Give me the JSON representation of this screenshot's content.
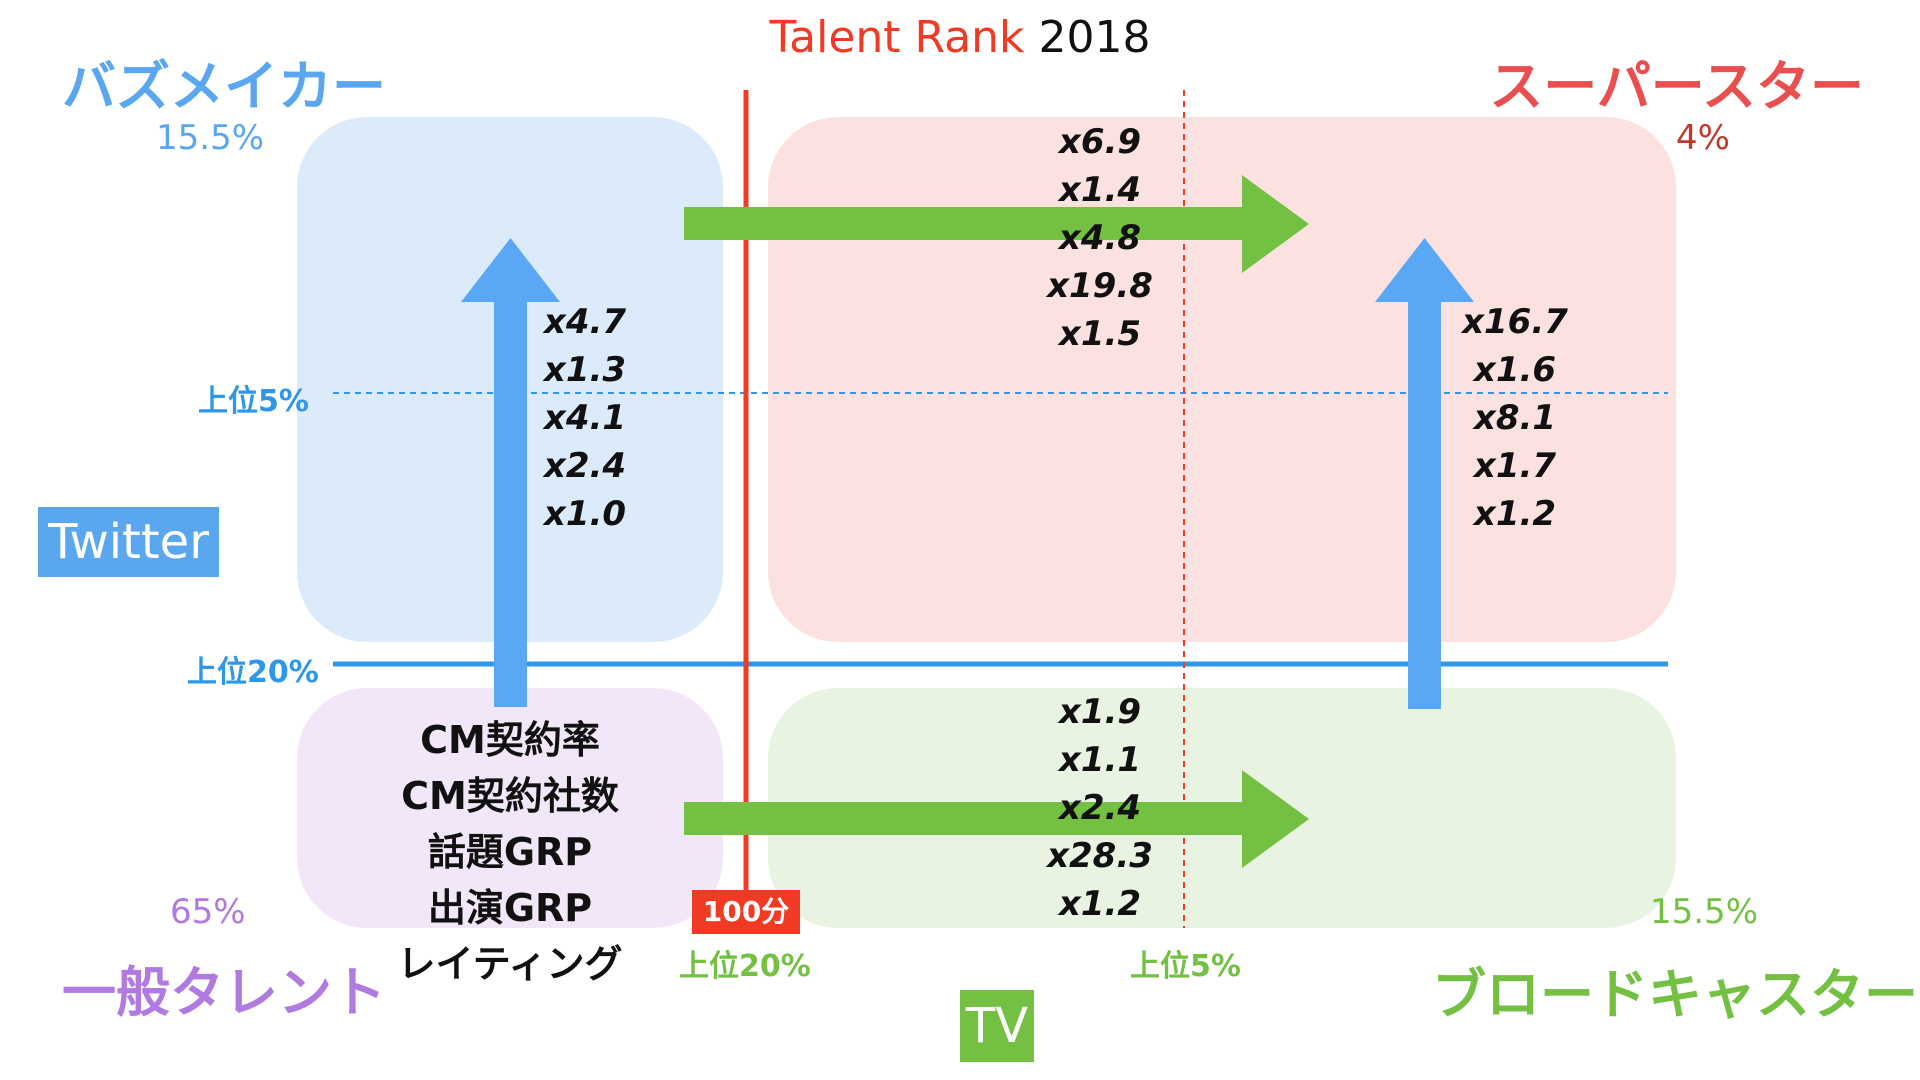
{
  "title": {
    "part1": "Talent Rank",
    "part2": "2018"
  },
  "quadrants": {
    "buzz_maker": {
      "label": "バズメイカー",
      "pct": "15.5%"
    },
    "superstar": {
      "label": "スーパースター",
      "pct": "4%"
    },
    "general": {
      "label": "一般タレント",
      "pct": "65%"
    },
    "broadcaster": {
      "label": "ブロードキャスター",
      "pct": "15.5%"
    }
  },
  "axes": {
    "y_label": "Twitter",
    "x_label": "TV"
  },
  "thresholds": {
    "twitter_top5": "上位5%",
    "twitter_top20": "上位20%",
    "tv_top20": "上位20%",
    "tv_top5": "上位5%",
    "tv_badge": "100分"
  },
  "metrics": [
    "CM契約率",
    "CM契約社数",
    "話題GRP",
    "出演GRP",
    "レイティング"
  ],
  "multipliers": {
    "general_to_buzz": [
      "x4.7",
      "x1.3",
      "x4.1",
      "x2.4",
      "x1.0"
    ],
    "buzz_to_superstar": [
      "x6.9",
      "x1.4",
      "x4.8",
      "x19.8",
      "x1.5"
    ],
    "broadcaster_to_superstar": [
      "x16.7",
      "x1.6",
      "x8.1",
      "x1.7",
      "x1.2"
    ],
    "general_to_broadcaster": [
      "x1.9",
      "x1.1",
      "x2.4",
      "x28.3",
      "x1.2"
    ]
  },
  "colors": {
    "blue": "#5aa7ef",
    "red": "#ea4f4f",
    "purple": "#b07ae0",
    "green": "#74c043",
    "line_red": "#f03a24",
    "line_blue": "#2e97ea",
    "box_blue": "#dcebfa",
    "box_red": "#fbe2e0",
    "box_purple": "#f2e7f8",
    "box_green": "#e8f3e1"
  }
}
